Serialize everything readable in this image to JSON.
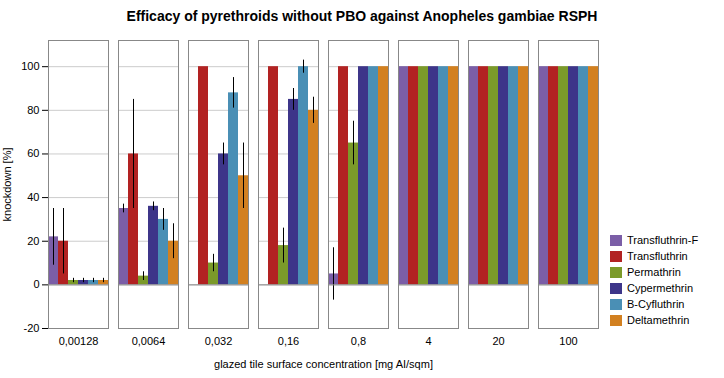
{
  "chart_data": {
    "type": "bar",
    "title": "Efficacy of pyrethroids without PBO against Anopheles gambiae RSPH",
    "xlabel": "glazed tile surface concentration [mg AI/sqm]",
    "ylabel": "knockdown [%]",
    "categories": [
      "0,00128",
      "0,0064",
      "0,032",
      "0,16",
      "0,8",
      "4",
      "20",
      "100"
    ],
    "series": [
      {
        "name": "Transfluthrin-F",
        "color": "#7B5EA7",
        "values": [
          22,
          35,
          0,
          0,
          5,
          100,
          100,
          100
        ],
        "errors": [
          13,
          2,
          0,
          0,
          12,
          0,
          0,
          0
        ]
      },
      {
        "name": "Transfluthrin",
        "color": "#B22222",
        "values": [
          20,
          60,
          100,
          100,
          100,
          100,
          100,
          100
        ],
        "errors": [
          15,
          25,
          0,
          0,
          0,
          0,
          0,
          0
        ]
      },
      {
        "name": "Permathrin",
        "color": "#7B9A2A",
        "values": [
          2,
          4,
          10,
          18,
          65,
          100,
          100,
          100
        ],
        "errors": [
          1,
          2,
          4,
          8,
          10,
          0,
          0,
          0
        ]
      },
      {
        "name": "Cypermethrin",
        "color": "#3D3589",
        "values": [
          2,
          36,
          60,
          85,
          100,
          100,
          100,
          100
        ],
        "errors": [
          1,
          2,
          5,
          5,
          0,
          0,
          0,
          0
        ]
      },
      {
        "name": "B-Cyfluthrin",
        "color": "#4A8FB5",
        "values": [
          2,
          30,
          88,
          100,
          100,
          100,
          100,
          100
        ],
        "errors": [
          1,
          5,
          7,
          3,
          0,
          0,
          0,
          0
        ]
      },
      {
        "name": "Deltamethrin",
        "color": "#D28020",
        "values": [
          2,
          20,
          50,
          80,
          100,
          100,
          100,
          100
        ],
        "errors": [
          1,
          8,
          15,
          6,
          0,
          0,
          0,
          0
        ]
      }
    ],
    "ylim": [
      -20,
      112
    ],
    "yticks": [
      -20,
      0,
      20,
      40,
      60,
      80,
      100
    ],
    "grid": true,
    "legend": "lower right"
  }
}
